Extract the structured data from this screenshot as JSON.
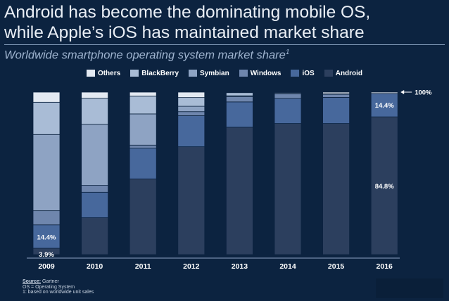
{
  "title_line1": "Android has become the dominating mobile OS,",
  "title_line2": "while Apple’s iOS has maintained market share",
  "subtitle": "Worldwide smartphone operating system market share",
  "subtitle_footnote": "1",
  "source": {
    "label": "Source:",
    "value": "Gartner",
    "note1": "OS = Operating System",
    "note2": "1: based on worldwide unit sales"
  },
  "colors": {
    "Others": "#e3e9f2",
    "BlackBerry": "#a9bcd6",
    "Symbian": "#8ea3c3",
    "Windows": "#6f86ad",
    "iOS": "#47689c",
    "Android": "#2c3f5e"
  },
  "chart_data": {
    "type": "bar",
    "stacked": true,
    "categories": [
      "2009",
      "2010",
      "2011",
      "2012",
      "2013",
      "2014",
      "2015",
      "2016"
    ],
    "ylim": [
      0,
      100
    ],
    "legend_position": "top",
    "series": [
      {
        "name": "Android",
        "values": [
          3.9,
          22.7,
          46.6,
          66.4,
          78.4,
          80.7,
          80.7,
          84.8
        ]
      },
      {
        "name": "iOS",
        "values": [
          14.4,
          15.7,
          18.9,
          19.1,
          15.6,
          15.4,
          16.1,
          14.4
        ]
      },
      {
        "name": "Windows",
        "values": [
          8.7,
          4.2,
          1.9,
          2.5,
          3.2,
          2.8,
          1.9,
          0.0
        ]
      },
      {
        "name": "Symbian",
        "values": [
          46.9,
          37.6,
          19.2,
          3.3,
          0.6,
          0.3,
          0.0,
          0.0
        ]
      },
      {
        "name": "BlackBerry",
        "values": [
          19.9,
          16.0,
          10.9,
          5.4,
          1.9,
          0.6,
          0.3,
          0.0
        ]
      },
      {
        "name": "Others",
        "values": [
          6.2,
          3.8,
          2.5,
          3.3,
          0.3,
          0.2,
          1.0,
          0.8
        ]
      }
    ],
    "data_labels": [
      {
        "text": "3.9%",
        "category": "2009",
        "series": "Android"
      },
      {
        "text": "14.4%",
        "category": "2009",
        "series": "iOS"
      },
      {
        "text": "14.4%",
        "category": "2016",
        "series": "iOS"
      },
      {
        "text": "84.8%",
        "category": "2016",
        "series": "Android"
      }
    ],
    "annotation": {
      "text": "100%",
      "category": "2016",
      "value": 100
    }
  }
}
